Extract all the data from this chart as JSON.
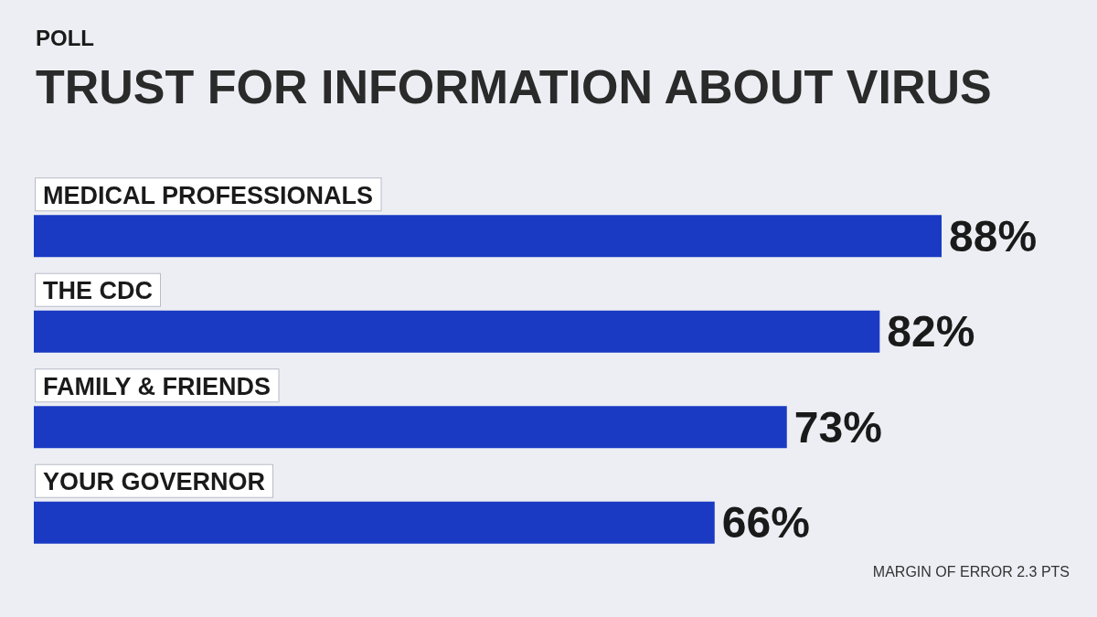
{
  "chart_data": {
    "type": "bar",
    "orientation": "horizontal",
    "subtitle": "POLL",
    "title": "TRUST FOR INFORMATION ABOUT VIRUS",
    "categories": [
      "MEDICAL PROFESSIONALS",
      "THE CDC",
      "FAMILY & FRIENDS",
      "YOUR GOVERNOR"
    ],
    "values": [
      88,
      82,
      73,
      66
    ],
    "value_labels": [
      "88%",
      "82%",
      "73%",
      "66%"
    ],
    "color": "#1a3ac4",
    "annotations": [
      "MARGIN OF ERROR 2.3 PTS"
    ]
  }
}
